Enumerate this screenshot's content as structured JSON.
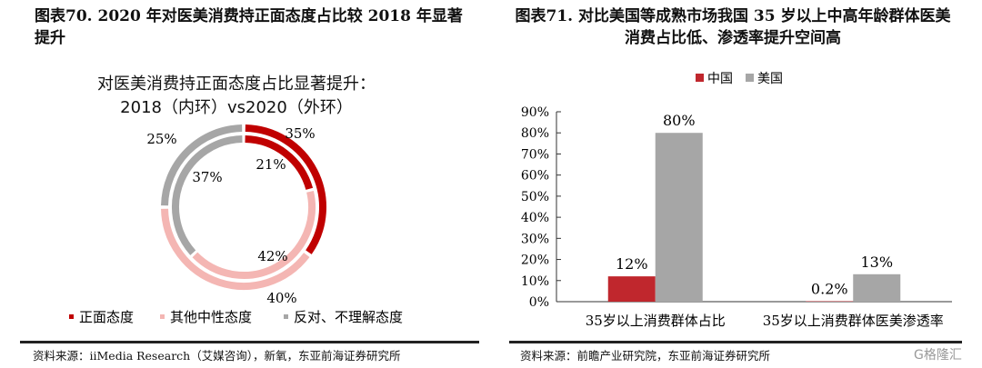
{
  "left": {
    "figure_title": "图表70. 2020 年对医美消费持正面态度占比较 2018 年显著提升",
    "source": "资料来源：iiMedia Research（艾媒咨询），新氧，东亚前海证券研究所"
  },
  "right": {
    "figure_title": "图表71. 对比美国等成熟市场我国 35 岁以上中高年龄群体医美消费占比低、渗透率提升空间高",
    "source": "资料来源：前瞻产业研究院，东亚前海证券研究所"
  },
  "watermark": "格隆汇",
  "chart_data": [
    {
      "type": "pie",
      "subtype": "double-donut",
      "title": "对医美消费持正面态度占比显著提升：2018（内环）vs2020（外环）",
      "categories": [
        "正面态度",
        "其他中性态度",
        "反对、不理解态度"
      ],
      "colors": [
        "#c00000",
        "#f4b6b3",
        "#a6a6a6"
      ],
      "series": [
        {
          "name": "2020（外环）",
          "values": [
            35,
            40,
            25
          ],
          "labels": [
            "35%",
            "40%",
            "25%"
          ]
        },
        {
          "name": "2018（内环）",
          "values": [
            21,
            42,
            37
          ],
          "labels": [
            "21%",
            "42%",
            "37%"
          ]
        }
      ],
      "legend": "bottom"
    },
    {
      "type": "bar",
      "categories": [
        "35岁以上消费群体占比",
        "35岁以上消费群体医美渗透率"
      ],
      "series": [
        {
          "name": "中国",
          "values": [
            12,
            0.2
          ],
          "labels": [
            "12%",
            "0.2%"
          ],
          "color": "#c0272d"
        },
        {
          "name": "美国",
          "values": [
            80,
            13
          ],
          "labels": [
            "80%",
            "13%"
          ],
          "color": "#a6a6a6"
        }
      ],
      "ylim": [
        0,
        90
      ],
      "yticks": [
        "0%",
        "10%",
        "20%",
        "30%",
        "40%",
        "50%",
        "60%",
        "70%",
        "80%",
        "90%"
      ],
      "grid": false,
      "legend": "top"
    }
  ]
}
